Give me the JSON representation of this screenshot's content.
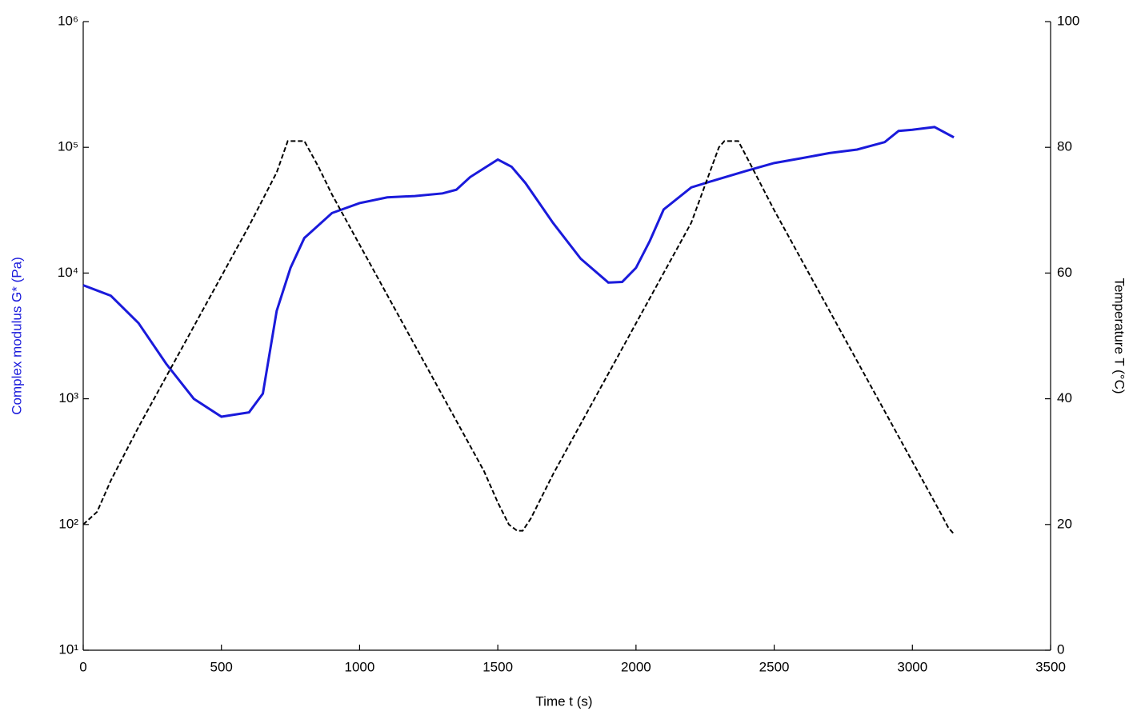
{
  "chart_data": {
    "type": "line",
    "xlabel": "Time t (s)",
    "ylabel": "Complex modulus G* (Pa)",
    "y2label": "Temperature T (°C)",
    "xlim": [
      0,
      3500
    ],
    "xticks": [
      0,
      500,
      1000,
      1500,
      2000,
      2500,
      3000,
      3500
    ],
    "ylim": [
      10,
      1000000
    ],
    "yscale": "log",
    "yticks": [
      {
        "value": 10,
        "label": "10¹"
      },
      {
        "value": 100,
        "label": "10²"
      },
      {
        "value": 1000,
        "label": "10³"
      },
      {
        "value": 10000,
        "label": "10⁴"
      },
      {
        "value": 100000,
        "label": "10⁵"
      },
      {
        "value": 1000000,
        "label": "10⁶"
      }
    ],
    "y2lim": [
      0,
      100
    ],
    "y2ticks": [
      0,
      20,
      40,
      60,
      80,
      100
    ],
    "ylabel_color": "#1a1adb",
    "series": [
      {
        "name": "Complex modulus",
        "color": "#1a1adb",
        "dash": false,
        "x": [
          0,
          100,
          200,
          300,
          400,
          500,
          600,
          650,
          700,
          750,
          800,
          900,
          1000,
          1100,
          1200,
          1300,
          1350,
          1400,
          1500,
          1550,
          1600,
          1700,
          1800,
          1900,
          1950,
          2000,
          2050,
          2100,
          2200,
          2300,
          2400,
          2500,
          2600,
          2700,
          2800,
          2900,
          2950,
          3000,
          3080,
          3150
        ],
        "values": [
          8000,
          6600,
          4000,
          1900,
          1000,
          720,
          780,
          1100,
          5000,
          11000,
          19000,
          30000,
          36000,
          40000,
          41000,
          43000,
          46000,
          58000,
          80000,
          70000,
          52000,
          25000,
          13000,
          8400,
          8500,
          11000,
          18000,
          32000,
          48000,
          56000,
          65000,
          75000,
          82000,
          90000,
          96000,
          110000,
          135000,
          138000,
          145000,
          120000
        ]
      },
      {
        "name": "Temperature",
        "color": "#000000",
        "dash": true,
        "axis": "y2",
        "x": [
          0,
          50,
          100,
          200,
          300,
          400,
          500,
          600,
          700,
          740,
          800,
          850,
          900,
          1000,
          1100,
          1200,
          1300,
          1400,
          1450,
          1500,
          1540,
          1570,
          1590,
          1620,
          1700,
          1800,
          1900,
          2000,
          2100,
          2200,
          2300,
          2320,
          2370,
          2400,
          2500,
          2600,
          2700,
          2800,
          2900,
          3000,
          3100,
          3130,
          3150
        ],
        "values": [
          20,
          22,
          27,
          35.5,
          43.5,
          51.5,
          59.5,
          67.5,
          76,
          81,
          81,
          77,
          72.5,
          64.5,
          56.5,
          48.5,
          40.5,
          32.5,
          28.5,
          23.5,
          20,
          19,
          19,
          21,
          28,
          36,
          44,
          52,
          60,
          68,
          80,
          81,
          81,
          78.5,
          70,
          62,
          54,
          46,
          38,
          30,
          22,
          19.5,
          18.5
        ]
      }
    ]
  }
}
